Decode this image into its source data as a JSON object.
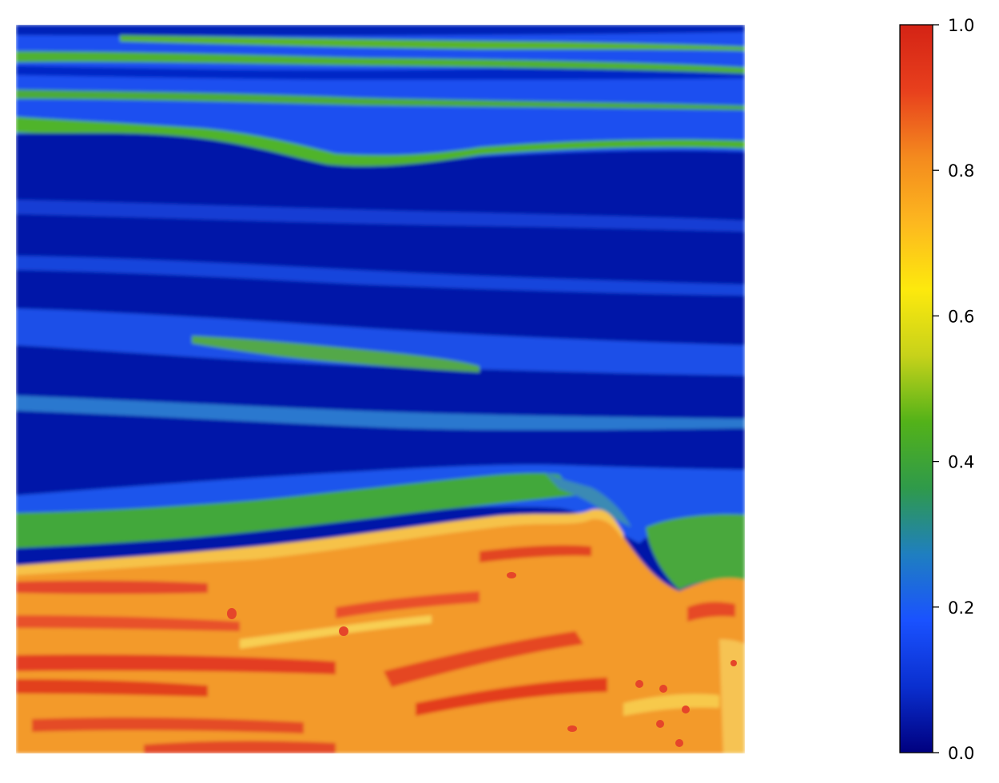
{
  "chart_data": {
    "type": "heatmap",
    "title": "",
    "xlabel": "",
    "ylabel": "",
    "axes_visible": false,
    "colormap": [
      "#00007f",
      "#0a2fcf",
      "#1a52ff",
      "#1f7fc0",
      "#2f9a4a",
      "#53b219",
      "#c7d21a",
      "#fde90d",
      "#fdb81f",
      "#f48a1e",
      "#e8401d",
      "#d42315"
    ],
    "colorbar": {
      "range": [
        0,
        1
      ],
      "ticks": [
        0.0,
        0.2,
        0.4,
        0.6,
        0.8,
        1.0
      ],
      "tick_labels": [
        "0.0",
        "0.2",
        "0.4",
        "0.6",
        "0.8",
        "1.0"
      ]
    },
    "field_regions": [
      {
        "name": "upper-thin-green-layers",
        "value_range": [
          0.15,
          0.45
        ]
      },
      {
        "name": "deep-blue-band",
        "value_range": [
          0.05,
          0.2
        ]
      },
      {
        "name": "middle-blue-green-streaks",
        "value_range": [
          0.1,
          0.4
        ]
      },
      {
        "name": "green-layer-above-boundary",
        "value_range": [
          0.35,
          0.45
        ]
      },
      {
        "name": "lower-orange-red-body",
        "value_range": [
          0.75,
          0.95
        ]
      }
    ]
  }
}
